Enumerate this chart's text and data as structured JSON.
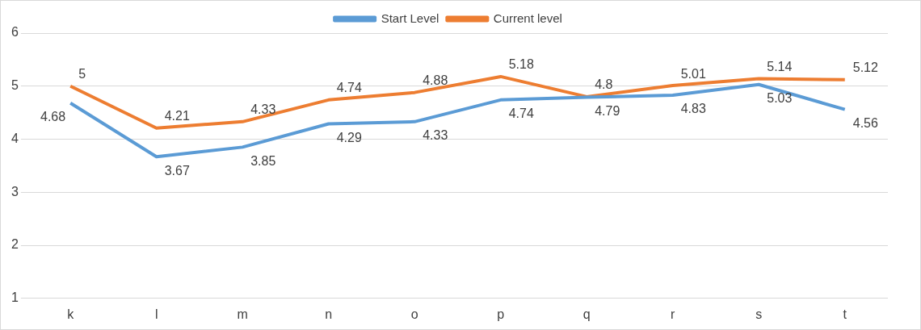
{
  "chart_data": {
    "type": "line",
    "categories": [
      "k",
      "l",
      "m",
      "n",
      "o",
      "p",
      "q",
      "r",
      "s",
      "t"
    ],
    "series": [
      {
        "name": "Start Level",
        "color": "#5b9bd5",
        "values": [
          4.68,
          3.67,
          3.85,
          4.29,
          4.33,
          4.74,
          4.79,
          4.83,
          5.03,
          4.56
        ]
      },
      {
        "name": "Current level",
        "color": "#ed7d31",
        "values": [
          5,
          4.21,
          4.33,
          4.74,
          4.88,
          5.18,
          4.8,
          5.01,
          5.14,
          5.12
        ]
      }
    ],
    "ylim": [
      1,
      6
    ],
    "yticks": [
      1,
      2,
      3,
      4,
      5,
      6
    ],
    "grid": "y",
    "legend": "top",
    "marker": "none",
    "line_style": "solid",
    "data_labels": true
  }
}
